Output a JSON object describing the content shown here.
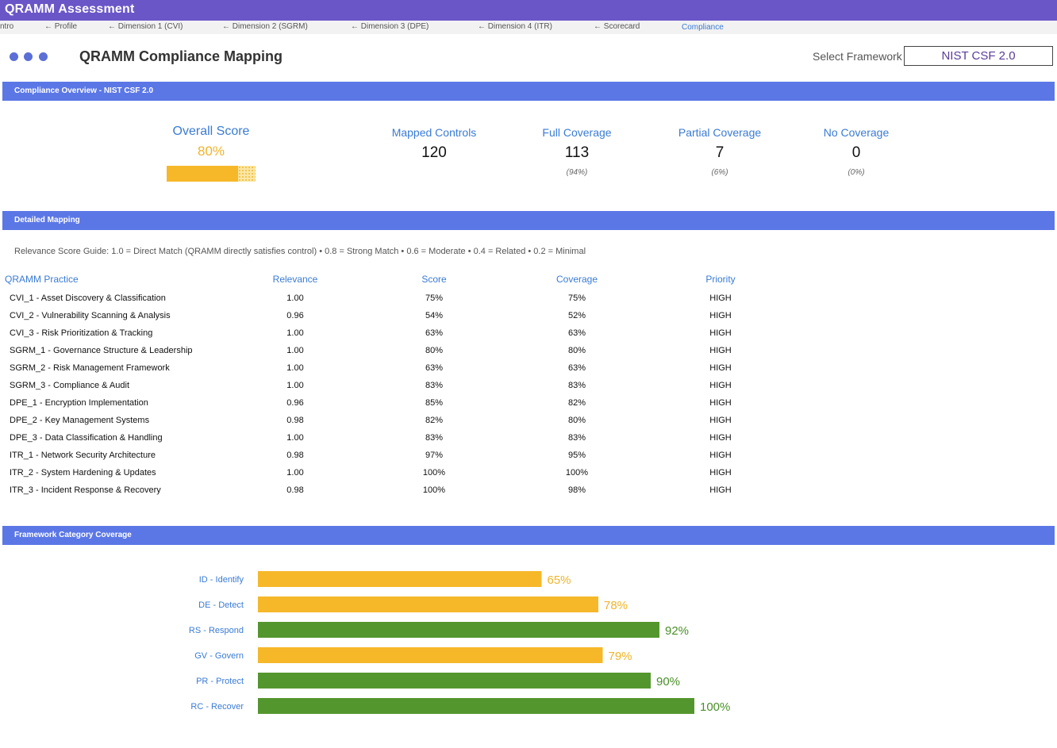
{
  "app": {
    "title": "QRAMM Assessment"
  },
  "tabs": [
    {
      "label": "ntro",
      "active": false
    },
    {
      "label": "← Profile",
      "active": false
    },
    {
      "label": "← Dimension 1 (CVI)",
      "active": false
    },
    {
      "label": "← Dimension 2 (SGRM)",
      "active": false
    },
    {
      "label": "← Dimension 3 (DPE)",
      "active": false
    },
    {
      "label": "← Dimension 4 (ITR)",
      "active": false
    },
    {
      "label": "← Scorecard",
      "active": false
    },
    {
      "label": "Compliance",
      "active": true
    }
  ],
  "header": {
    "title": "QRAMM Compliance Mapping",
    "framework_label": "Select Framework",
    "framework_value": "NIST CSF 2.0"
  },
  "overview": {
    "section_title": "Compliance Overview - NIST CSF 2.0",
    "overall_label": "Overall Score",
    "overall_value": "80%",
    "overall_fraction": 0.8,
    "mapped_label": "Mapped Controls",
    "mapped_value": "120",
    "full_label": "Full Coverage",
    "full_value": "113",
    "full_pct": "(94%)",
    "partial_label": "Partial Coverage",
    "partial_value": "7",
    "partial_pct": "(6%)",
    "none_label": "No Coverage",
    "none_value": "0",
    "none_pct": "(0%)"
  },
  "mapping": {
    "section_title": "Detailed Mapping",
    "guide": "Relevance Score Guide: 1.0 = Direct Match (QRAMM directly satisfies control)   •   0.8 = Strong Match   •   0.6 = Moderate   •   0.4 = Related   •   0.2 = Minimal",
    "headers": {
      "practice": "QRAMM Practice",
      "relevance": "Relevance",
      "score": "Score",
      "coverage": "Coverage",
      "priority": "Priority"
    },
    "rows": [
      {
        "practice": "CVI_1 - Asset Discovery & Classification",
        "relevance": "1.00",
        "score": "75%",
        "coverage": "75%",
        "priority": "HIGH"
      },
      {
        "practice": "CVI_2 - Vulnerability Scanning & Analysis",
        "relevance": "0.96",
        "score": "54%",
        "coverage": "52%",
        "priority": "HIGH"
      },
      {
        "practice": "CVI_3 - Risk Prioritization & Tracking",
        "relevance": "1.00",
        "score": "63%",
        "coverage": "63%",
        "priority": "HIGH"
      },
      {
        "practice": "SGRM_1 - Governance Structure & Leadership",
        "relevance": "1.00",
        "score": "80%",
        "coverage": "80%",
        "priority": "HIGH"
      },
      {
        "practice": "SGRM_2 - Risk Management Framework",
        "relevance": "1.00",
        "score": "63%",
        "coverage": "63%",
        "priority": "HIGH"
      },
      {
        "practice": "SGRM_3 - Compliance & Audit",
        "relevance": "1.00",
        "score": "83%",
        "coverage": "83%",
        "priority": "HIGH"
      },
      {
        "practice": "DPE_1 - Encryption Implementation",
        "relevance": "0.96",
        "score": "85%",
        "coverage": "82%",
        "priority": "HIGH"
      },
      {
        "practice": "DPE_2 - Key Management Systems",
        "relevance": "0.98",
        "score": "82%",
        "coverage": "80%",
        "priority": "HIGH"
      },
      {
        "practice": "DPE_3 - Data Classification & Handling",
        "relevance": "1.00",
        "score": "83%",
        "coverage": "83%",
        "priority": "HIGH"
      },
      {
        "practice": "ITR_1 - Network Security Architecture",
        "relevance": "0.98",
        "score": "97%",
        "coverage": "95%",
        "priority": "HIGH"
      },
      {
        "practice": "ITR_2 - System Hardening & Updates",
        "relevance": "1.00",
        "score": "100%",
        "coverage": "100%",
        "priority": "HIGH"
      },
      {
        "practice": "ITR_3 - Incident Response & Recovery",
        "relevance": "0.98",
        "score": "100%",
        "coverage": "98%",
        "priority": "HIGH"
      }
    ]
  },
  "category": {
    "section_title": "Framework Category Coverage"
  },
  "chart_data": {
    "type": "bar",
    "orientation": "horizontal",
    "categories": [
      "ID - Identify",
      "DE - Detect",
      "RS - Respond",
      "GV - Govern",
      "PR - Protect",
      "RC - Recover"
    ],
    "values": [
      65,
      78,
      92,
      79,
      90,
      100
    ],
    "value_labels": [
      "65%",
      "78%",
      "92%",
      "79%",
      "90%",
      "100%"
    ],
    "bar_colors": [
      "#f6b829",
      "#f6b829",
      "#54962e",
      "#f6b829",
      "#54962e",
      "#54962e"
    ],
    "label_colors": [
      "#f0b429",
      "#f0b429",
      "#4a8f29",
      "#f0b429",
      "#4a8f29",
      "#4a8f29"
    ],
    "xlim": [
      0,
      100
    ],
    "grid": false,
    "legend": "none"
  }
}
